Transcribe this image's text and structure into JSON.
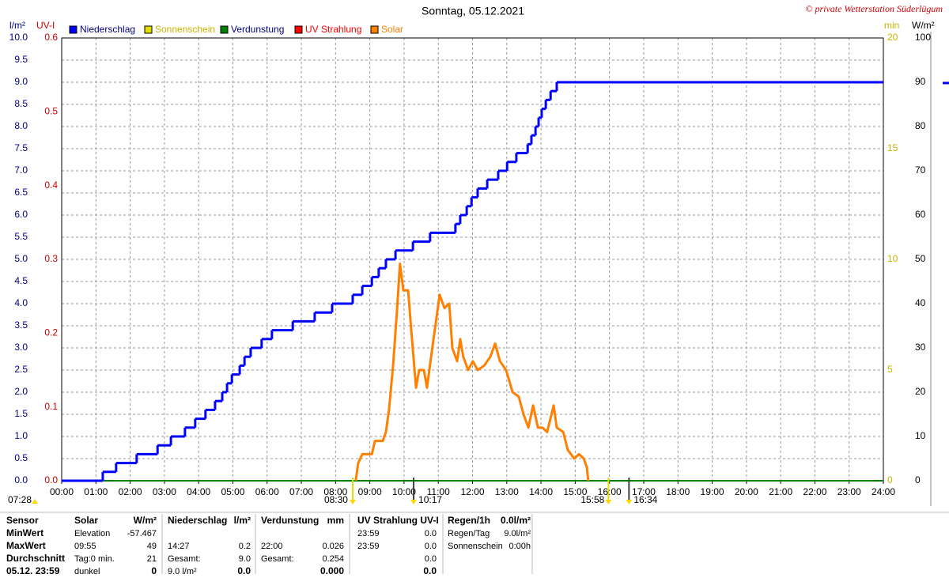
{
  "chart_data": {
    "type": "line",
    "title": "Sonntag, 05.12.2021",
    "copyright": "© private Wetterstation Süderlügum",
    "y_label": "l/m²",
    "y3_label": "UV-I",
    "y4_label": "min",
    "y2_label": "W/m²",
    "xlim": [
      0,
      24
    ],
    "xticks": [
      {
        "value": 0,
        "label": "00:00"
      },
      {
        "value": 1,
        "label": "01:00"
      },
      {
        "value": 2,
        "label": "02:00"
      },
      {
        "value": 3,
        "label": "03:00"
      },
      {
        "value": 4,
        "label": "04:00"
      },
      {
        "value": 5,
        "label": "05:00"
      },
      {
        "value": 6,
        "label": "06:00"
      },
      {
        "value": 7,
        "label": "07:00"
      },
      {
        "value": 8,
        "label": "08:00"
      },
      {
        "value": 9,
        "label": "09:00"
      },
      {
        "value": 10,
        "label": "10:00"
      },
      {
        "value": 11,
        "label": "11:00"
      },
      {
        "value": 12,
        "label": "12:00"
      },
      {
        "value": 13,
        "label": "13:00"
      },
      {
        "value": 14,
        "label": "14:00"
      },
      {
        "value": 15,
        "label": "15:00"
      },
      {
        "value": 16,
        "label": "16:00"
      },
      {
        "value": 17,
        "label": "17:00"
      },
      {
        "value": 18,
        "label": "18:00"
      },
      {
        "value": 19,
        "label": "19:00"
      },
      {
        "value": 20,
        "label": "20:00"
      },
      {
        "value": 21,
        "label": "21:00"
      },
      {
        "value": 22,
        "label": "22:00"
      },
      {
        "value": 23,
        "label": "23:00"
      },
      {
        "value": 24,
        "label": "24:00"
      }
    ],
    "ylim": [
      0,
      10
    ],
    "yticks": [
      {
        "value": 0,
        "label": "0.0"
      },
      {
        "value": 0.5,
        "label": "0.5"
      },
      {
        "value": 1,
        "label": "1.0"
      },
      {
        "value": 1.5,
        "label": "1.5"
      },
      {
        "value": 2,
        "label": "2.0"
      },
      {
        "value": 2.5,
        "label": "2.5"
      },
      {
        "value": 3,
        "label": "3.0"
      },
      {
        "value": 3.5,
        "label": "3.5"
      },
      {
        "value": 4,
        "label": "4.0"
      },
      {
        "value": 4.5,
        "label": "4.5"
      },
      {
        "value": 5,
        "label": "5.0"
      },
      {
        "value": 5.5,
        "label": "5.5"
      },
      {
        "value": 6,
        "label": "6.0"
      },
      {
        "value": 6.5,
        "label": "6.5"
      },
      {
        "value": 7,
        "label": "7.0"
      },
      {
        "value": 7.5,
        "label": "7.5"
      },
      {
        "value": 8,
        "label": "8.0"
      },
      {
        "value": 8.5,
        "label": "8.5"
      },
      {
        "value": 9,
        "label": "9.0"
      },
      {
        "value": 9.5,
        "label": "9.5"
      },
      {
        "value": 10,
        "label": "10.0"
      }
    ],
    "y3lim": [
      0,
      0.6
    ],
    "y3ticks": [
      {
        "value": 0,
        "label": "0.0"
      },
      0.1,
      0.2,
      0.3,
      0.4,
      0.5,
      0.6
    ],
    "y4lim": [
      0,
      20
    ],
    "y4ticks": [
      0,
      5,
      10,
      15,
      20
    ],
    "y2lim": [
      0,
      100
    ],
    "y2ticks": [
      0,
      10,
      20,
      30,
      40,
      50,
      60,
      70,
      80,
      90,
      100
    ],
    "grid": true,
    "series": [
      {
        "name": "Niederschlag",
        "color": "#0000ff",
        "step": true,
        "x": [
          0,
          1.2,
          1.59,
          2.19,
          2.8,
          3.19,
          3.6,
          3.9,
          4.2,
          4.48,
          4.69,
          4.83,
          4.97,
          5.2,
          5.34,
          5.52,
          5.84,
          6.14,
          6.75,
          7.39,
          7.9,
          8.5,
          8.78,
          9.06,
          9.26,
          9.47,
          9.75,
          10.26,
          10.76,
          11.5,
          11.64,
          11.83,
          11.97,
          12.15,
          12.43,
          12.75,
          13.01,
          13.28,
          13.61,
          13.72,
          13.84,
          13.93,
          14.02,
          14.14,
          14.28,
          14.46
        ],
        "values": [
          0,
          0.2,
          0.4,
          0.6,
          0.8,
          1.0,
          1.2,
          1.4,
          1.6,
          1.8,
          2.0,
          2.2,
          2.4,
          2.6,
          2.8,
          3.0,
          3.2,
          3.4,
          3.6,
          3.8,
          4.0,
          4.2,
          4.4,
          4.6,
          4.8,
          5.0,
          5.2,
          5.4,
          5.6,
          5.8,
          6.0,
          6.2,
          6.4,
          6.6,
          6.8,
          7.0,
          7.2,
          7.4,
          7.6,
          7.8,
          8.0,
          8.2,
          8.4,
          8.6,
          8.8,
          9.0
        ]
      },
      {
        "name": "Sonnenschein",
        "color": "#e0e000",
        "axis": "y4",
        "x": [
          0,
          24
        ],
        "values": [
          0,
          0
        ]
      },
      {
        "name": "Verdunstung",
        "color": "#008000",
        "x": [
          0,
          24
        ],
        "values": [
          0,
          0
        ]
      },
      {
        "name": "UV Strahlung",
        "color": "#ff0000",
        "axis": "y3",
        "x": [
          0,
          24
        ],
        "values": [
          0,
          0
        ]
      },
      {
        "name": "Solar",
        "color": "#ff8000",
        "axis": "y2",
        "x": [
          8.59,
          8.66,
          8.78,
          9.06,
          9.15,
          9.38,
          9.47,
          9.56,
          9.68,
          9.79,
          9.88,
          9.98,
          10.12,
          10.21,
          10.35,
          10.44,
          10.58,
          10.67,
          10.79,
          10.95,
          11.04,
          11.18,
          11.32,
          11.41,
          11.55,
          11.64,
          11.73,
          11.87,
          12.01,
          12.15,
          12.34,
          12.52,
          12.66,
          12.8,
          12.98,
          13.17,
          13.35,
          13.49,
          13.63,
          13.77,
          13.91,
          14.04,
          14.18,
          14.37,
          14.46,
          14.65,
          14.78,
          14.97,
          15.11,
          15.25,
          15.34,
          15.38
        ],
        "values": [
          0,
          4,
          6,
          6,
          9,
          9,
          11,
          16,
          26,
          38,
          49,
          43,
          43,
          34,
          21,
          25,
          25,
          21,
          28,
          37,
          42,
          39,
          40,
          30,
          27,
          32,
          28,
          25,
          27,
          25,
          26,
          28,
          31,
          27,
          25,
          20,
          19,
          15,
          12,
          17,
          12,
          12,
          11,
          17,
          12,
          11,
          7,
          5,
          6,
          5,
          3,
          0
        ]
      }
    ],
    "annotations": [
      {
        "label": "07:28"
      },
      {
        "x": 8.5,
        "label": "08:30"
      },
      {
        "x": 10.28,
        "label": "10:17"
      },
      {
        "x": 15.97,
        "label": "15:58"
      },
      {
        "x": 16.57,
        "label": "16:34"
      }
    ]
  },
  "stats": {
    "rows": [
      [
        "Sensor",
        "Solar",
        "W/m²",
        "Niederschlag",
        "l/m²",
        "Verdunstung",
        "mm",
        "UV Strahlung UV-I",
        null,
        "Regen/1h",
        "0.0l/m²"
      ],
      [
        "MinWert",
        "Elevation",
        "-57.467",
        null,
        null,
        null,
        null,
        "23:59",
        "0.0",
        "Regen/Tag",
        "9.0l/m²"
      ],
      [
        "MaxWert",
        "09:55",
        "49",
        "14:27",
        "0.2",
        "22:00",
        "0.026",
        "23:59",
        "0.0",
        "Sonnenschein",
        "0:00h"
      ],
      [
        "Durchschnitt",
        "Tag:0 min.",
        "21",
        "Gesamt:",
        "9.0",
        "Gesamt:",
        "0.254",
        null,
        "0.0",
        null,
        null
      ],
      [
        "05.12. 23:59",
        "dunkel",
        "0",
        "9.0 l/m²",
        "0.0",
        null,
        "0.000",
        null,
        "0.0",
        null,
        null
      ]
    ]
  }
}
